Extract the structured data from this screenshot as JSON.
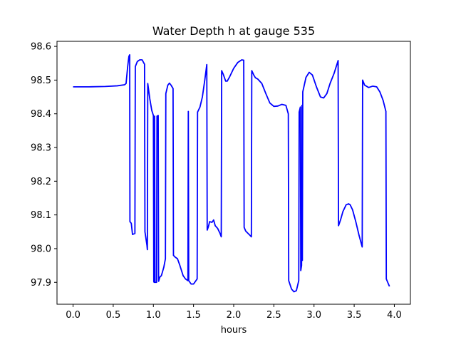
{
  "chart_data": {
    "type": "line",
    "title": "Water Depth h at gauge 535",
    "xlabel": "hours",
    "ylabel": "",
    "xlim": [
      -0.2,
      4.2
    ],
    "ylim": [
      97.835,
      98.615
    ],
    "grid": false,
    "x_ticks": [
      0.0,
      0.5,
      1.0,
      1.5,
      2.0,
      2.5,
      3.0,
      3.5,
      4.0
    ],
    "x_tick_labels": [
      "0.0",
      "0.5",
      "1.0",
      "1.5",
      "2.0",
      "2.5",
      "3.0",
      "3.5",
      "4.0"
    ],
    "y_ticks": [
      97.9,
      98.0,
      98.1,
      98.2,
      98.3,
      98.4,
      98.5,
      98.6
    ],
    "y_tick_labels": [
      "97.9",
      "98.0",
      "98.1",
      "98.2",
      "98.3",
      "98.4",
      "98.5",
      "98.6"
    ],
    "series": [
      {
        "color": "#0000ff",
        "points": [
          [
            0.0,
            98.48
          ],
          [
            0.2,
            98.48
          ],
          [
            0.4,
            98.481
          ],
          [
            0.55,
            98.483
          ],
          [
            0.64,
            98.486
          ],
          [
            0.66,
            98.49
          ],
          [
            0.68,
            98.54
          ],
          [
            0.695,
            98.57
          ],
          [
            0.705,
            98.575
          ],
          [
            0.708,
            98.08
          ],
          [
            0.725,
            98.075
          ],
          [
            0.74,
            98.042
          ],
          [
            0.77,
            98.045
          ],
          [
            0.775,
            98.54
          ],
          [
            0.8,
            98.555
          ],
          [
            0.83,
            98.56
          ],
          [
            0.86,
            98.56
          ],
          [
            0.89,
            98.547
          ],
          [
            0.895,
            98.05
          ],
          [
            0.92,
            98.01
          ],
          [
            0.925,
            97.997
          ],
          [
            0.93,
            98.49
          ],
          [
            0.955,
            98.445
          ],
          [
            0.98,
            98.41
          ],
          [
            1.0,
            98.395
          ],
          [
            1.005,
            97.902
          ],
          [
            1.01,
            97.9
          ],
          [
            1.015,
            98.393
          ],
          [
            1.02,
            97.9
          ],
          [
            1.04,
            97.9
          ],
          [
            1.045,
            98.393
          ],
          [
            1.06,
            98.395
          ],
          [
            1.065,
            97.903
          ],
          [
            1.08,
            97.915
          ],
          [
            1.1,
            97.92
          ],
          [
            1.13,
            97.945
          ],
          [
            1.15,
            97.97
          ],
          [
            1.155,
            98.46
          ],
          [
            1.18,
            98.485
          ],
          [
            1.2,
            98.491
          ],
          [
            1.22,
            98.485
          ],
          [
            1.245,
            98.475
          ],
          [
            1.25,
            97.98
          ],
          [
            1.27,
            97.975
          ],
          [
            1.3,
            97.97
          ],
          [
            1.33,
            97.95
          ],
          [
            1.37,
            97.92
          ],
          [
            1.4,
            97.91
          ],
          [
            1.43,
            97.905
          ],
          [
            1.435,
            98.407
          ],
          [
            1.44,
            97.905
          ],
          [
            1.47,
            97.895
          ],
          [
            1.5,
            97.895
          ],
          [
            1.53,
            97.905
          ],
          [
            1.545,
            97.91
          ],
          [
            1.55,
            98.405
          ],
          [
            1.58,
            98.42
          ],
          [
            1.61,
            98.45
          ],
          [
            1.64,
            98.5
          ],
          [
            1.665,
            98.546
          ],
          [
            1.67,
            98.055
          ],
          [
            1.685,
            98.065
          ],
          [
            1.7,
            98.08
          ],
          [
            1.73,
            98.078
          ],
          [
            1.75,
            98.085
          ],
          [
            1.77,
            98.068
          ],
          [
            1.8,
            98.06
          ],
          [
            1.83,
            98.045
          ],
          [
            1.845,
            98.035
          ],
          [
            1.85,
            98.528
          ],
          [
            1.87,
            98.517
          ],
          [
            1.9,
            98.497
          ],
          [
            1.92,
            98.497
          ],
          [
            1.95,
            98.51
          ],
          [
            2.0,
            98.535
          ],
          [
            2.05,
            98.552
          ],
          [
            2.1,
            98.56
          ],
          [
            2.125,
            98.559
          ],
          [
            2.13,
            98.063
          ],
          [
            2.15,
            98.052
          ],
          [
            2.2,
            98.04
          ],
          [
            2.22,
            98.035
          ],
          [
            2.225,
            98.528
          ],
          [
            2.25,
            98.515
          ],
          [
            2.27,
            98.507
          ],
          [
            2.3,
            98.503
          ],
          [
            2.35,
            98.49
          ],
          [
            2.4,
            98.46
          ],
          [
            2.45,
            98.432
          ],
          [
            2.5,
            98.422
          ],
          [
            2.55,
            98.423
          ],
          [
            2.6,
            98.428
          ],
          [
            2.65,
            98.425
          ],
          [
            2.68,
            98.4
          ],
          [
            2.685,
            97.905
          ],
          [
            2.72,
            97.88
          ],
          [
            2.75,
            97.872
          ],
          [
            2.78,
            97.875
          ],
          [
            2.81,
            97.905
          ],
          [
            2.815,
            98.405
          ],
          [
            2.83,
            98.42
          ],
          [
            2.835,
            97.935
          ],
          [
            2.845,
            97.95
          ],
          [
            2.85,
            98.425
          ],
          [
            2.855,
            97.965
          ],
          [
            2.86,
            98.465
          ],
          [
            2.9,
            98.508
          ],
          [
            2.94,
            98.523
          ],
          [
            2.98,
            98.515
          ],
          [
            3.03,
            98.48
          ],
          [
            3.08,
            98.45
          ],
          [
            3.12,
            98.447
          ],
          [
            3.16,
            98.46
          ],
          [
            3.2,
            98.49
          ],
          [
            3.25,
            98.52
          ],
          [
            3.3,
            98.558
          ],
          [
            3.305,
            98.068
          ],
          [
            3.33,
            98.085
          ],
          [
            3.36,
            98.11
          ],
          [
            3.4,
            98.13
          ],
          [
            3.43,
            98.133
          ],
          [
            3.45,
            98.13
          ],
          [
            3.48,
            98.115
          ],
          [
            3.52,
            98.08
          ],
          [
            3.56,
            98.04
          ],
          [
            3.6,
            98.005
          ],
          [
            3.605,
            98.5
          ],
          [
            3.63,
            98.485
          ],
          [
            3.68,
            98.478
          ],
          [
            3.73,
            98.482
          ],
          [
            3.78,
            98.48
          ],
          [
            3.82,
            98.465
          ],
          [
            3.86,
            98.44
          ],
          [
            3.895,
            98.407
          ],
          [
            3.9,
            97.91
          ],
          [
            3.93,
            97.893
          ],
          [
            3.94,
            97.888
          ]
        ]
      }
    ]
  }
}
